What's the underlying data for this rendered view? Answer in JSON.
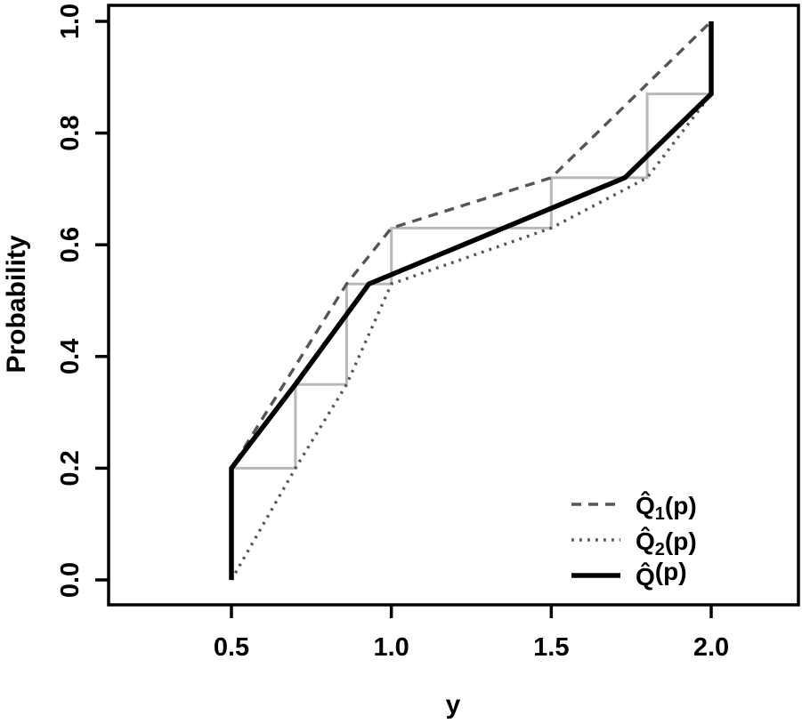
{
  "chart_data": {
    "type": "line",
    "title": "",
    "xlabel": "y",
    "ylabel": "Probability",
    "xlim": [
      0.12,
      2.27
    ],
    "ylim": [
      -0.045,
      1.03
    ],
    "grid": false,
    "legend_position": "bottom-right",
    "x_ticks": [
      {
        "v": 0.5,
        "label": "0.5"
      },
      {
        "v": 1.0,
        "label": "1.0"
      },
      {
        "v": 1.5,
        "label": "1.5"
      },
      {
        "v": 2.0,
        "label": "2.0"
      }
    ],
    "y_ticks": [
      {
        "v": 0.0,
        "label": "0.0"
      },
      {
        "v": 0.2,
        "label": "0.2"
      },
      {
        "v": 0.4,
        "label": "0.4"
      },
      {
        "v": 0.6,
        "label": "0.6"
      },
      {
        "v": 0.8,
        "label": "0.8"
      },
      {
        "v": 1.0,
        "label": "1.0"
      }
    ],
    "series": [
      {
        "name": "staircase",
        "style": "solid",
        "color": "#b8b8b8",
        "width": 3,
        "show_in_legend": false,
        "points": [
          [
            0.5,
            0.2
          ],
          [
            0.7,
            0.2
          ],
          [
            0.7,
            0.35
          ],
          [
            0.86,
            0.35
          ],
          [
            0.86,
            0.53
          ],
          [
            1.0,
            0.53
          ],
          [
            1.0,
            0.63
          ],
          [
            1.5,
            0.63
          ],
          [
            1.5,
            0.72
          ],
          [
            1.8,
            0.72
          ],
          [
            1.8,
            0.87
          ],
          [
            2.0,
            0.87
          ]
        ]
      },
      {
        "name": "Q̂1(p)",
        "style": "dashed",
        "color": "#555555",
        "width": 3.4,
        "show_in_legend": true,
        "points": [
          [
            0.5,
            0.0
          ],
          [
            0.5,
            0.2
          ],
          [
            0.86,
            0.53
          ],
          [
            1.0,
            0.63
          ],
          [
            1.5,
            0.72
          ],
          [
            2.0,
            1.0
          ]
        ]
      },
      {
        "name": "Q̂2(p)",
        "style": "dotted",
        "color": "#555555",
        "width": 3.4,
        "show_in_legend": true,
        "points": [
          [
            0.5,
            0.0
          ],
          [
            0.7,
            0.2
          ],
          [
            0.86,
            0.35
          ],
          [
            1.0,
            0.53
          ],
          [
            1.5,
            0.63
          ],
          [
            1.8,
            0.72
          ],
          [
            2.0,
            0.87
          ],
          [
            2.0,
            1.0
          ]
        ]
      },
      {
        "name": "Q̂(p)",
        "style": "solid",
        "color": "#000000",
        "width": 5.5,
        "show_in_legend": true,
        "points": [
          [
            0.5,
            0.0
          ],
          [
            0.5,
            0.2
          ],
          [
            0.7,
            0.35
          ],
          [
            0.93,
            0.53
          ],
          [
            1.73,
            0.72
          ],
          [
            2.0,
            0.87
          ],
          [
            2.0,
            1.0
          ]
        ]
      }
    ]
  },
  "legend": {
    "items": [
      {
        "base": "Q̂",
        "sub": "1",
        "rest": "(p)",
        "series_index": 1
      },
      {
        "base": "Q̂",
        "sub": "2",
        "rest": "(p)",
        "series_index": 2
      },
      {
        "base": "Q̂",
        "sub": "",
        "rest": "(p)",
        "series_index": 3
      }
    ]
  }
}
